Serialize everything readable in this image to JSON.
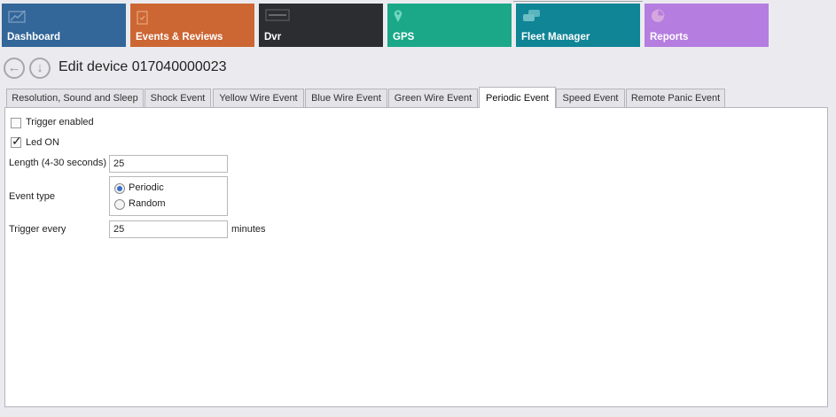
{
  "tiles": [
    {
      "label": "Dashboard",
      "color": "#336699",
      "icon": "chart-line-icon"
    },
    {
      "label": "Events & Reviews",
      "color": "#cc6633",
      "icon": "clipboard-check-icon"
    },
    {
      "label": "Dvr",
      "color": "#2b2d31",
      "icon": "dvr-logo-icon"
    },
    {
      "label": "GPS",
      "color": "#1aa889",
      "icon": "map-pin-icon"
    },
    {
      "label": "Fleet Manager",
      "color": "#0f8596",
      "icon": "cars-icon"
    },
    {
      "label": "Reports",
      "color": "#b57de0",
      "icon": "pie-chart-icon"
    }
  ],
  "header": {
    "title": "Edit device 017040000023"
  },
  "tabs": [
    "Resolution, Sound and Sleep",
    "Shock Event",
    "Yellow Wire Event",
    "Blue Wire Event",
    "Green Wire Event",
    "Periodic Event",
    "Speed Event",
    "Remote Panic Event"
  ],
  "active_tab": "Periodic Event",
  "form": {
    "trigger_enabled": {
      "label": "Trigger enabled",
      "checked": false
    },
    "led_on": {
      "label": "Led ON",
      "checked": true
    },
    "length": {
      "label": "Length (4-30 seconds)",
      "value": "25"
    },
    "event_type": {
      "label": "Event type",
      "options": [
        "Periodic",
        "Random"
      ],
      "selected": "Periodic"
    },
    "trigger_every": {
      "label": "Trigger every",
      "value": "25",
      "unit": "minutes"
    }
  }
}
